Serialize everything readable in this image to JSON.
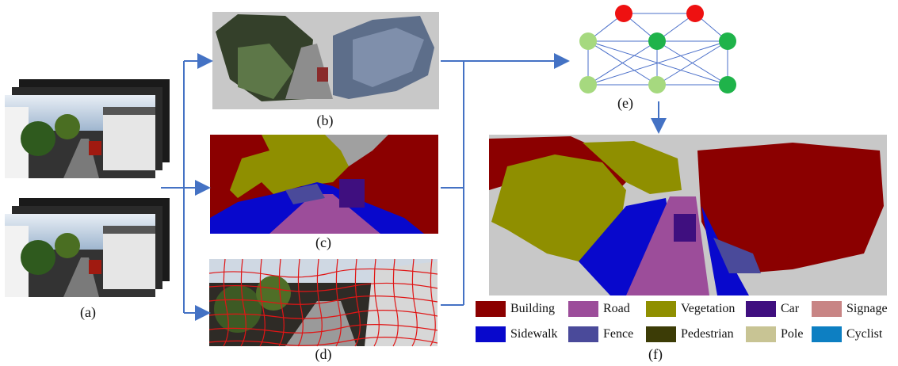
{
  "captions": {
    "a": "(a)",
    "b": "(b)",
    "c": "(c)",
    "d": "(d)",
    "e": "(e)",
    "f": "(f)"
  },
  "graph": {
    "red_color": "#ee1111",
    "light_green_color": "#a6d97f",
    "dark_green_color": "#1fb34a",
    "edge_color": "#4a6fc9"
  },
  "arrow_color": "#4472c4",
  "legend": [
    {
      "label": "Building",
      "color": "#8b0000"
    },
    {
      "label": "Road",
      "color": "#9c4d9a"
    },
    {
      "label": "Vegetation",
      "color": "#8f8f00"
    },
    {
      "label": "Car",
      "color": "#3f0f7f"
    },
    {
      "label": "Signage",
      "color": "#c88585"
    },
    {
      "label": "Sidewalk",
      "color": "#0808cc"
    },
    {
      "label": "Fence",
      "color": "#4a4a9a"
    },
    {
      "label": "Pedestrian",
      "color": "#3c3c06"
    },
    {
      "label": "Pole",
      "color": "#c8c494"
    },
    {
      "label": "Cyclist",
      "color": "#0d7fc2"
    }
  ]
}
